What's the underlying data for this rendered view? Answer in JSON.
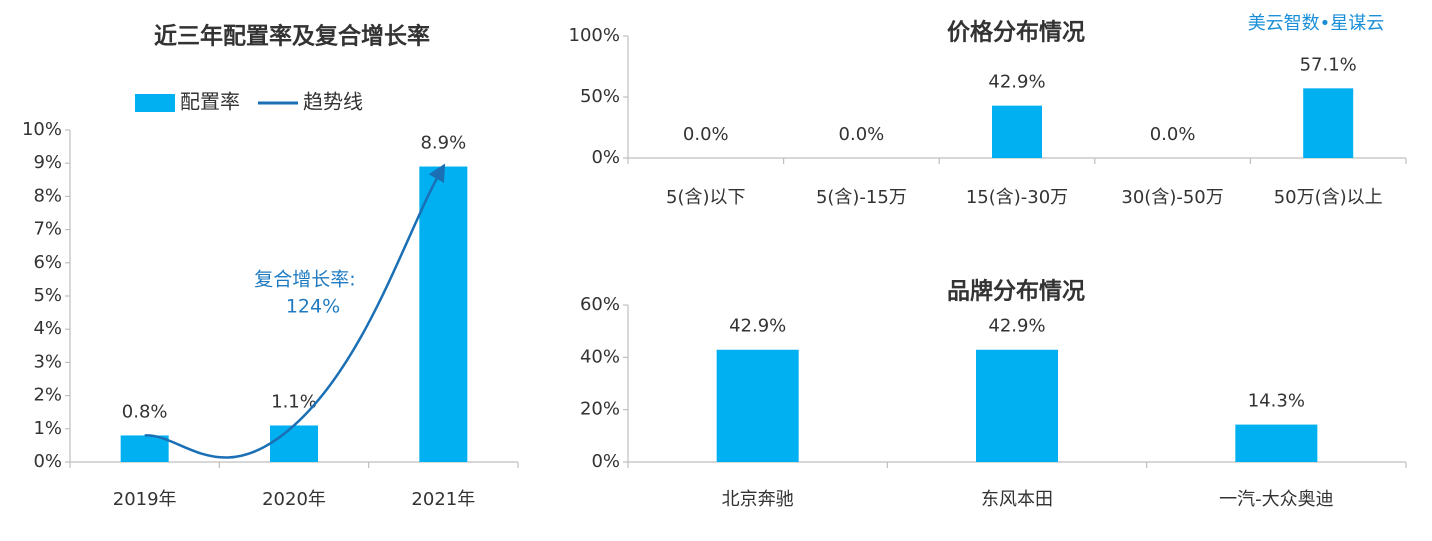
{
  "source": "美云智数•星谋云",
  "chart_data": [
    {
      "type": "combo",
      "title": "近三年配置率及复合增长率",
      "categories": [
        "2019年",
        "2020年",
        "2021年"
      ],
      "series": [
        {
          "name": "配置率",
          "type": "bar",
          "color": "#00b0f0",
          "values": [
            0.8,
            1.1,
            8.9
          ],
          "value_labels": [
            "0.8%",
            "1.1%",
            "8.9%"
          ]
        },
        {
          "name": "趋势线",
          "type": "line",
          "color": "#1a6fb5",
          "values": [
            0.8,
            1.1,
            8.9
          ]
        }
      ],
      "ylim": [
        0,
        10
      ],
      "yticks": [
        {
          "value": 0,
          "label": "0%"
        },
        {
          "value": 1,
          "label": "1%"
        },
        {
          "value": 2,
          "label": "2%"
        },
        {
          "value": 3,
          "label": "3%"
        },
        {
          "value": 4,
          "label": "4%"
        },
        {
          "value": 5,
          "label": "5%"
        },
        {
          "value": 6,
          "label": "6%"
        },
        {
          "value": 7,
          "label": "7%"
        },
        {
          "value": 8,
          "label": "8%"
        },
        {
          "value": 9,
          "label": "9%"
        },
        {
          "value": 10,
          "label": "10%"
        }
      ],
      "annotation": [
        "复合增长率:",
        "124%"
      ],
      "legend": "top",
      "grid": false
    },
    {
      "type": "bar",
      "title": "价格分布情况",
      "categories": [
        "5(含)以下",
        "5(含)-15万",
        "15(含)-30万",
        "30(含)-50万",
        "50万(含)以上"
      ],
      "values": [
        0,
        0,
        42.9,
        0,
        57.1
      ],
      "value_labels": [
        "0.0%",
        "0.0%",
        "42.9%",
        "0.0%",
        "57.1%"
      ],
      "color": "#00b0f0",
      "ylim": [
        0,
        100
      ],
      "yticks": [
        {
          "value": 0,
          "label": "0%"
        },
        {
          "value": 50,
          "label": "50%"
        },
        {
          "value": 100,
          "label": "100%"
        }
      ],
      "grid": false
    },
    {
      "type": "bar",
      "title": "品牌分布情况",
      "categories": [
        "北京奔驰",
        "东风本田",
        "一汽-大众奥迪"
      ],
      "values": [
        42.9,
        42.9,
        14.3
      ],
      "value_labels": [
        "42.9%",
        "42.9%",
        "14.3%"
      ],
      "color": "#00b0f0",
      "ylim": [
        0,
        60
      ],
      "yticks": [
        {
          "value": 0,
          "label": "0%"
        },
        {
          "value": 20,
          "label": "20%"
        },
        {
          "value": 40,
          "label": "40%"
        },
        {
          "value": 60,
          "label": "60%"
        }
      ],
      "grid": false
    }
  ]
}
